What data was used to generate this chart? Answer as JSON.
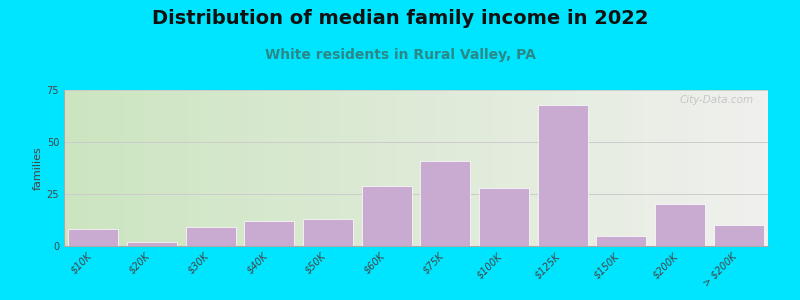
{
  "title": "Distribution of median family income in 2022",
  "subtitle": "White residents in Rural Valley, PA",
  "categories": [
    "$10K",
    "$20K",
    "$30K",
    "$40K",
    "$50K",
    "$60K",
    "$75K",
    "$100K",
    "$125K",
    "$150K",
    "$200K",
    "> $200K"
  ],
  "values": [
    8,
    2,
    9,
    12,
    13,
    29,
    41,
    28,
    68,
    5,
    20,
    10
  ],
  "bar_color": "#c9aad1",
  "bar_edge_color": "#ffffff",
  "background_outer": "#00e5ff",
  "bg_left_color": "#cce5c0",
  "bg_right_color": "#f0f0ee",
  "title_color": "#111111",
  "subtitle_color": "#2a8888",
  "ylabel": "families",
  "ylim": [
    0,
    75
  ],
  "yticks": [
    0,
    25,
    50,
    75
  ],
  "grid_color": "#cccccc",
  "watermark": "City-Data.com",
  "title_fontsize": 14,
  "subtitle_fontsize": 10,
  "ylabel_fontsize": 8,
  "tick_fontsize": 7
}
